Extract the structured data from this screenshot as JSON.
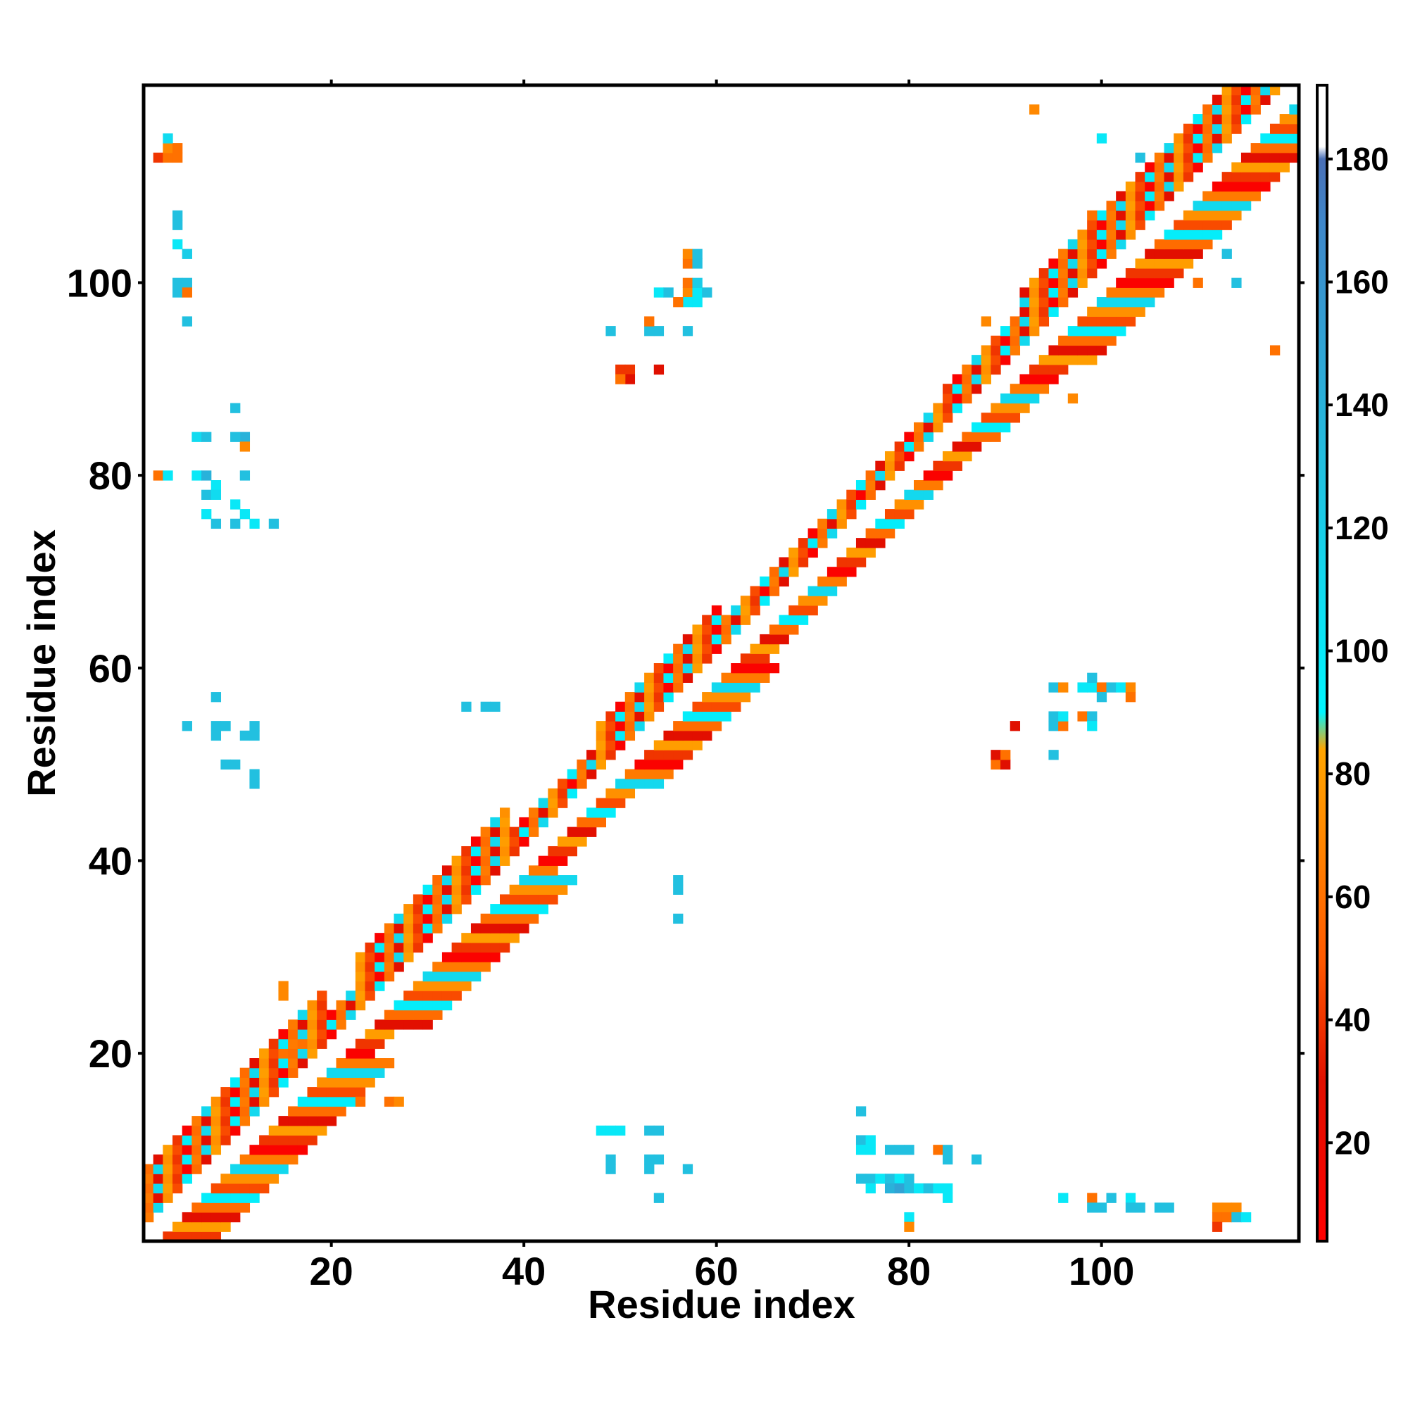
{
  "chart_data": {
    "type": "heatmap",
    "xlabel": "Residue index",
    "ylabel": "Residue index",
    "xlim": [
      0.5,
      120.5
    ],
    "ylim": [
      0.5,
      120.5
    ],
    "x_ticks": [
      20,
      40,
      60,
      80,
      100
    ],
    "y_ticks": [
      20,
      40,
      60,
      80,
      100
    ],
    "colorbar": {
      "range": [
        4,
        192
      ],
      "ticks": [
        20,
        40,
        60,
        80,
        100,
        120,
        140,
        160,
        180
      ],
      "stops": [
        {
          "value": 4,
          "color": "#ff0000"
        },
        {
          "value": 30,
          "color": "#e01000"
        },
        {
          "value": 50,
          "color": "#ff5a00"
        },
        {
          "value": 70,
          "color": "#ff8800"
        },
        {
          "value": 84,
          "color": "#ffa500"
        },
        {
          "value": 90,
          "color": "#00f5ff"
        },
        {
          "value": 130,
          "color": "#22c0e0"
        },
        {
          "value": 170,
          "color": "#3f86c9"
        },
        {
          "value": 180,
          "color": "#4a6fb5"
        },
        {
          "value": 182,
          "color": "#ffffff"
        },
        {
          "value": 192,
          "color": "#ffffff"
        }
      ]
    },
    "diagonal_bands": [
      {
        "start": 1,
        "end": 19,
        "halfwidth": 7
      },
      {
        "start": 19,
        "end": 23,
        "halfwidth": 4
      },
      {
        "start": 23,
        "end": 38,
        "halfwidth": 7
      },
      {
        "start": 38,
        "end": 48,
        "halfwidth": 4
      },
      {
        "start": 48,
        "end": 60,
        "halfwidth": 6
      },
      {
        "start": 60,
        "end": 84,
        "halfwidth": 4
      },
      {
        "start": 84,
        "end": 92,
        "halfwidth": 5
      },
      {
        "start": 92,
        "end": 114,
        "halfwidth": 7
      },
      {
        "start": 114,
        "end": 120,
        "halfwidth": 5
      }
    ],
    "contacts": [
      [
        2,
        113,
        40
      ],
      [
        3,
        113,
        60
      ],
      [
        4,
        113,
        60
      ],
      [
        3,
        114,
        70
      ],
      [
        4,
        114,
        60
      ],
      [
        3,
        115,
        110
      ],
      [
        4,
        107,
        130
      ],
      [
        4,
        106,
        130
      ],
      [
        4,
        104,
        100
      ],
      [
        5,
        103,
        120
      ],
      [
        4,
        100,
        130
      ],
      [
        5,
        100,
        130
      ],
      [
        4,
        99,
        130
      ],
      [
        5,
        99,
        60
      ],
      [
        5,
        96,
        130
      ],
      [
        2,
        80,
        60
      ],
      [
        3,
        80,
        100
      ],
      [
        6,
        84,
        110
      ],
      [
        7,
        84,
        130
      ],
      [
        6,
        80,
        100
      ],
      [
        7,
        80,
        140
      ],
      [
        8,
        79,
        100
      ],
      [
        7,
        78,
        130
      ],
      [
        8,
        78,
        110
      ],
      [
        7,
        76,
        100
      ],
      [
        8,
        75,
        130
      ],
      [
        11,
        84,
        140
      ],
      [
        10,
        84,
        130
      ],
      [
        11,
        83,
        70
      ],
      [
        10,
        87,
        130
      ],
      [
        11,
        80,
        130
      ],
      [
        10,
        77,
        100
      ],
      [
        11,
        76,
        100
      ],
      [
        10,
        75,
        130
      ],
      [
        12,
        75,
        100
      ],
      [
        14,
        75,
        130
      ],
      [
        5,
        54,
        130
      ],
      [
        8,
        57,
        130
      ],
      [
        8,
        54,
        130
      ],
      [
        8,
        53,
        130
      ],
      [
        9,
        54,
        130
      ],
      [
        9,
        50,
        130
      ],
      [
        10,
        50,
        130
      ],
      [
        12,
        54,
        130
      ],
      [
        11,
        53,
        130
      ],
      [
        12,
        53,
        130
      ],
      [
        12,
        49,
        130
      ],
      [
        12,
        48,
        130
      ],
      [
        34,
        56,
        130
      ],
      [
        36,
        56,
        130
      ],
      [
        37,
        56,
        130
      ],
      [
        56,
        38,
        130
      ],
      [
        56,
        37,
        130
      ],
      [
        56,
        34,
        130
      ],
      [
        15,
        27,
        70
      ],
      [
        15,
        26,
        70
      ],
      [
        15,
        20,
        60
      ],
      [
        17,
        21,
        60
      ],
      [
        23,
        15,
        60
      ],
      [
        26,
        15,
        60
      ],
      [
        27,
        15,
        70
      ],
      [
        50,
        91,
        40
      ],
      [
        51,
        91,
        40
      ],
      [
        51,
        90,
        30
      ],
      [
        50,
        90,
        60
      ],
      [
        54,
        91,
        30
      ],
      [
        49,
        95,
        130
      ],
      [
        53,
        95,
        130
      ],
      [
        54,
        95,
        130
      ],
      [
        53,
        96,
        60
      ],
      [
        57,
        95,
        130
      ],
      [
        54,
        99,
        100
      ],
      [
        55,
        99,
        130
      ],
      [
        57,
        99,
        70
      ],
      [
        58,
        99,
        100
      ],
      [
        59,
        99,
        130
      ],
      [
        57,
        98,
        100
      ],
      [
        58,
        98,
        100
      ],
      [
        56,
        98,
        60
      ],
      [
        57,
        100,
        60
      ],
      [
        58,
        100,
        120
      ],
      [
        57,
        102,
        60
      ],
      [
        58,
        102,
        130
      ],
      [
        57,
        103,
        70
      ],
      [
        58,
        103,
        130
      ],
      [
        89,
        50,
        60
      ],
      [
        90,
        50,
        30
      ],
      [
        89,
        51,
        30
      ],
      [
        90,
        51,
        60
      ],
      [
        91,
        54,
        30
      ],
      [
        95,
        51,
        130
      ],
      [
        95,
        54,
        130
      ],
      [
        96,
        54,
        60
      ],
      [
        95,
        55,
        130
      ],
      [
        96,
        55,
        100
      ],
      [
        98,
        55,
        60
      ],
      [
        99,
        55,
        130
      ],
      [
        99,
        54,
        100
      ],
      [
        95,
        58,
        130
      ],
      [
        96,
        58,
        70
      ],
      [
        98,
        58,
        100
      ],
      [
        99,
        58,
        100
      ],
      [
        100,
        58,
        60
      ],
      [
        99,
        59,
        130
      ],
      [
        101,
        58,
        130
      ],
      [
        102,
        58,
        100
      ],
      [
        103,
        58,
        70
      ],
      [
        103,
        57,
        60
      ],
      [
        100,
        57,
        130
      ],
      [
        48,
        12,
        100
      ],
      [
        49,
        12,
        100
      ],
      [
        50,
        12,
        100
      ],
      [
        53,
        12,
        130
      ],
      [
        54,
        12,
        130
      ],
      [
        49,
        9,
        130
      ],
      [
        49,
        8,
        130
      ],
      [
        53,
        9,
        130
      ],
      [
        53,
        8,
        130
      ],
      [
        54,
        9,
        130
      ],
      [
        57,
        8,
        130
      ],
      [
        54,
        5,
        130
      ],
      [
        75,
        14,
        130
      ],
      [
        75,
        11,
        130
      ],
      [
        76,
        11,
        100
      ],
      [
        75,
        10,
        100
      ],
      [
        76,
        10,
        100
      ],
      [
        78,
        10,
        130
      ],
      [
        79,
        10,
        130
      ],
      [
        80,
        10,
        130
      ],
      [
        83,
        10,
        60
      ],
      [
        84,
        10,
        130
      ],
      [
        84,
        9,
        130
      ],
      [
        87,
        9,
        130
      ],
      [
        75,
        7,
        130
      ],
      [
        76,
        7,
        130
      ],
      [
        77,
        7,
        100
      ],
      [
        78,
        7,
        130
      ],
      [
        79,
        7,
        100
      ],
      [
        80,
        7,
        130
      ],
      [
        78,
        6,
        140
      ],
      [
        79,
        6,
        150
      ],
      [
        80,
        6,
        130
      ],
      [
        81,
        6,
        100
      ],
      [
        82,
        6,
        130
      ],
      [
        83,
        6,
        100
      ],
      [
        84,
        6,
        100
      ],
      [
        76,
        6,
        100
      ],
      [
        84,
        5,
        100
      ],
      [
        80,
        3,
        100
      ],
      [
        80,
        2,
        70
      ],
      [
        96,
        5,
        100
      ],
      [
        99,
        5,
        60
      ],
      [
        99,
        4,
        130
      ],
      [
        100,
        4,
        130
      ],
      [
        101,
        5,
        130
      ],
      [
        103,
        5,
        100
      ],
      [
        103,
        4,
        130
      ],
      [
        104,
        4,
        130
      ],
      [
        106,
        4,
        130
      ],
      [
        107,
        4,
        130
      ],
      [
        112,
        4,
        70
      ],
      [
        113,
        4,
        70
      ],
      [
        114,
        4,
        70
      ],
      [
        112,
        3,
        60
      ],
      [
        113,
        3,
        60
      ],
      [
        114,
        3,
        130
      ],
      [
        115,
        3,
        100
      ],
      [
        112,
        2,
        40
      ],
      [
        93,
        118,
        70
      ],
      [
        100,
        115,
        100
      ],
      [
        104,
        113,
        130
      ],
      [
        99,
        107,
        60
      ],
      [
        113,
        103,
        130
      ],
      [
        114,
        100,
        130
      ],
      [
        110,
        100,
        60
      ],
      [
        88,
        96,
        70
      ],
      [
        97,
        88,
        70
      ],
      [
        118,
        93,
        60
      ]
    ]
  }
}
